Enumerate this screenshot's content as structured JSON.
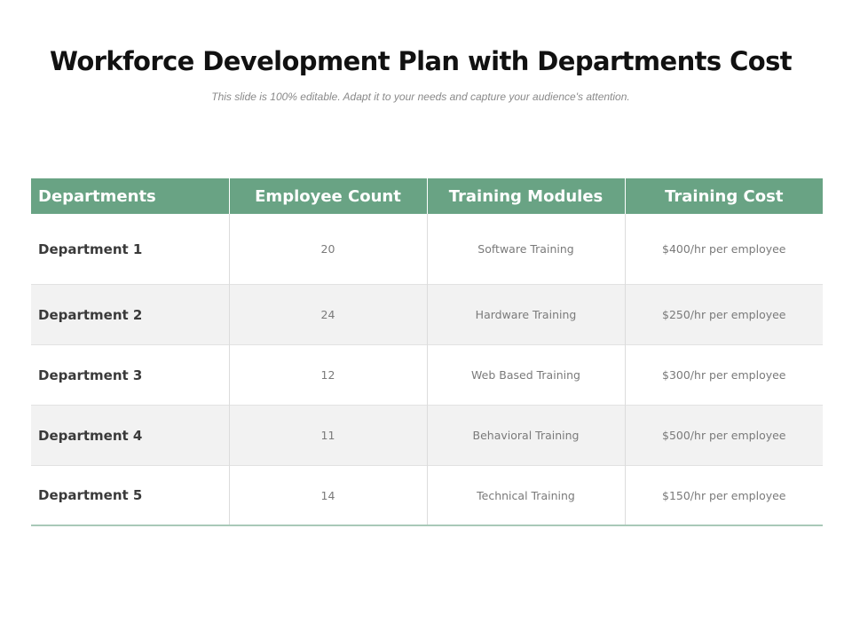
{
  "slide": {
    "title": "Workforce Development Plan with Departments Cost",
    "subtitle": "This slide is 100% editable. Adapt it to your needs and capture your audience's attention."
  },
  "table": {
    "headers": [
      "Departments",
      "Employee Count",
      "Training Modules",
      "Training Cost"
    ],
    "rows": [
      {
        "department": "Department  1",
        "count": "20",
        "module": "Software Training",
        "cost": "$400/hr per employee"
      },
      {
        "department": "Department  2",
        "count": "24",
        "module": "Hardware Training",
        "cost": "$250/hr per employee"
      },
      {
        "department": "Department  3",
        "count": "12",
        "module": "Web Based  Training",
        "cost": "$300/hr per employee"
      },
      {
        "department": "Department  4",
        "count": "11",
        "module": "Behavioral  Training",
        "cost": "$500/hr per employee"
      },
      {
        "department": "Department  5",
        "count": "14",
        "module": "Technical Training",
        "cost": "$150/hr per employee"
      }
    ]
  },
  "colors": {
    "header_bg": "#69a384",
    "stripe_bg": "#f2f2f2",
    "bottom_rule": "#a9c9b8"
  }
}
